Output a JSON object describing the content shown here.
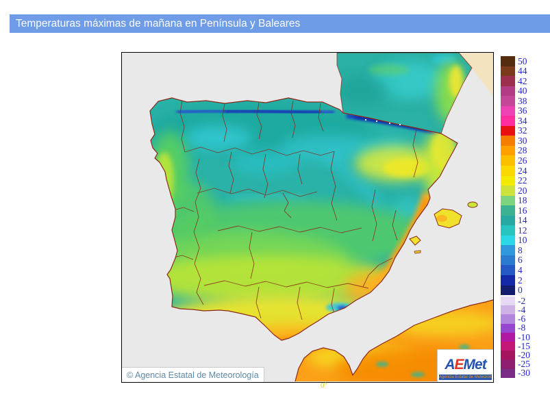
{
  "header": {
    "title": "Temperaturas máximas de mañana en Península y Baleares",
    "background": "#6e9ce6",
    "text_color": "#ffffff"
  },
  "map": {
    "copyright": "© Agencia Estatal de Meteorología",
    "meridian_label": "0°",
    "sea_color": "#e9e9e9",
    "out_of_domain_color": "#f3e3c1",
    "boundary_color": "#8b2818"
  },
  "logo": {
    "letters": [
      {
        "char": "A",
        "color": "#2553b0"
      },
      {
        "char": "E",
        "color": "#e03322"
      },
      {
        "char": "M",
        "color": "#2553b0"
      },
      {
        "char": "e",
        "color": "#2553b0"
      },
      {
        "char": "t",
        "color": "#2553b0"
      }
    ],
    "tagline": "Agencia Estatal de Meteorología",
    "tagline_color": "#f09a28",
    "tagline_bg": "#2a56ae"
  },
  "legend": {
    "positive": [
      {
        "label": "50",
        "color": "#542c10"
      },
      {
        "label": "44",
        "color": "#7c3c1c"
      },
      {
        "label": "42",
        "color": "#9c2e4e"
      },
      {
        "label": "40",
        "color": "#b23c84"
      },
      {
        "label": "38",
        "color": "#c44696"
      },
      {
        "label": "36",
        "color": "#ec42b4"
      },
      {
        "label": "34",
        "color": "#ff2e9e"
      },
      {
        "label": "32",
        "color": "#e81010"
      },
      {
        "label": "30",
        "color": "#f57e00"
      },
      {
        "label": "28",
        "color": "#fda000"
      },
      {
        "label": "26",
        "color": "#fcc000"
      },
      {
        "label": "24",
        "color": "#fbd800"
      },
      {
        "label": "22",
        "color": "#f4ea00"
      },
      {
        "label": "20",
        "color": "#cde23a"
      },
      {
        "label": "18",
        "color": "#7dd47e"
      },
      {
        "label": "16",
        "color": "#3cb293"
      },
      {
        "label": "14",
        "color": "#27a8a2"
      },
      {
        "label": "12",
        "color": "#27c4c0"
      },
      {
        "label": "10",
        "color": "#2cd8e8"
      },
      {
        "label": "8",
        "color": "#3098dc"
      },
      {
        "label": "6",
        "color": "#2b7cd0"
      },
      {
        "label": "4",
        "color": "#2458c4"
      },
      {
        "label": "2",
        "color": "#1428a8"
      },
      {
        "label": "0",
        "color": "#141c6e"
      }
    ],
    "negative": [
      {
        "label": "-2",
        "color": "#e6d9f2"
      },
      {
        "label": "-4",
        "color": "#cdb2e6"
      },
      {
        "label": "-6",
        "color": "#b286dc"
      },
      {
        "label": "-8",
        "color": "#9845d2"
      },
      {
        "label": "-10",
        "color": "#b119a4"
      },
      {
        "label": "-15",
        "color": "#c41778"
      },
      {
        "label": "-20",
        "color": "#a5145f"
      },
      {
        "label": "-25",
        "color": "#8f1d70"
      },
      {
        "label": "-30",
        "color": "#7b2c86"
      }
    ]
  }
}
